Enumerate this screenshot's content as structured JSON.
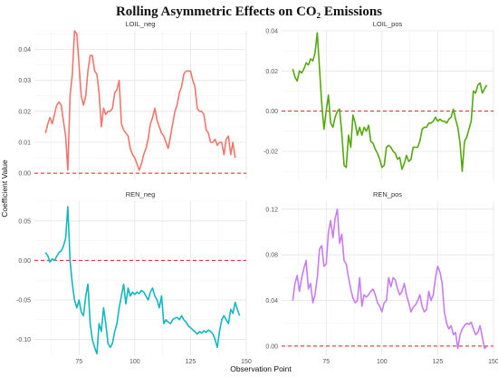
{
  "chart_data": {
    "type": "line",
    "title": "Rolling Asymmetric Effects on CO₂ Emissions",
    "xlabel": "Observation Point",
    "ylabel": "Coefficient Value",
    "grid": true,
    "reference_line": {
      "y": 0,
      "color": "#e0201b",
      "style": "dashed"
    },
    "x_range": [
      55,
      150
    ],
    "x_ticks": [
      75,
      100,
      125,
      150
    ],
    "panels": [
      {
        "name": "LOIL_neg",
        "color": "#f0766d",
        "ylim": [
          -0.002,
          0.046
        ],
        "y_ticks": [
          0.0,
          0.01,
          0.02,
          0.03,
          0.04
        ],
        "y_tick_labels": [
          "0.00",
          "0.01",
          "0.02",
          "0.03",
          "0.04"
        ],
        "x": [
          60,
          61,
          62,
          63,
          64,
          65,
          66,
          67,
          68,
          69,
          70,
          71,
          72,
          73,
          74,
          75,
          76,
          77,
          78,
          79,
          80,
          81,
          82,
          83,
          84,
          85,
          86,
          87,
          88,
          89,
          90,
          91,
          92,
          93,
          94,
          95,
          96,
          97,
          98,
          99,
          100,
          101,
          102,
          103,
          104,
          105,
          106,
          107,
          108,
          109,
          110,
          111,
          112,
          113,
          114,
          115,
          116,
          117,
          118,
          119,
          120,
          121,
          122,
          123,
          124,
          125,
          126,
          127,
          128,
          129,
          130,
          131,
          132,
          133,
          134,
          135,
          136,
          137,
          138,
          139,
          140,
          141,
          142,
          143,
          144,
          145
        ],
        "values": [
          0.013,
          0.016,
          0.018,
          0.016,
          0.019,
          0.022,
          0.023,
          0.022,
          0.017,
          0.012,
          0.001,
          0.025,
          0.032,
          0.046,
          0.045,
          0.035,
          0.025,
          0.022,
          0.025,
          0.033,
          0.038,
          0.038,
          0.033,
          0.032,
          0.026,
          0.015,
          0.021,
          0.019,
          0.02,
          0.02,
          0.021,
          0.026,
          0.027,
          0.03,
          0.016,
          0.014,
          0.013,
          0.012,
          0.008,
          0.006,
          0.005,
          0.003,
          0.001,
          0.003,
          0.006,
          0.008,
          0.011,
          0.016,
          0.018,
          0.021,
          0.017,
          0.015,
          0.013,
          0.012,
          0.01,
          0.008,
          0.012,
          0.016,
          0.02,
          0.022,
          0.026,
          0.028,
          0.032,
          0.033,
          0.033,
          0.033,
          0.03,
          0.028,
          0.021,
          0.02,
          0.02,
          0.019,
          0.014,
          0.013,
          0.01,
          0.01,
          0.011,
          0.009,
          0.01,
          0.01,
          0.006,
          0.011,
          0.012,
          0.006,
          0.01,
          0.005
        ]
      },
      {
        "name": "LOIL_pos",
        "color": "#54a80f",
        "ylim": [
          -0.034,
          0.04
        ],
        "y_ticks": [
          -0.02,
          0.0,
          0.02,
          0.04
        ],
        "y_tick_labels": [
          "-0.02",
          "0.00",
          "0.02",
          "0.04"
        ],
        "x": [
          60,
          61,
          62,
          63,
          64,
          65,
          66,
          67,
          68,
          69,
          70,
          71,
          72,
          73,
          74,
          75,
          76,
          77,
          78,
          79,
          80,
          81,
          82,
          83,
          84,
          85,
          86,
          87,
          88,
          89,
          90,
          91,
          92,
          93,
          94,
          95,
          96,
          97,
          98,
          99,
          100,
          101,
          102,
          103,
          104,
          105,
          106,
          107,
          108,
          109,
          110,
          111,
          112,
          113,
          114,
          115,
          116,
          117,
          118,
          119,
          120,
          121,
          122,
          123,
          124,
          125,
          126,
          127,
          128,
          129,
          130,
          131,
          132,
          133,
          134,
          135,
          136,
          137,
          138,
          139,
          140,
          141,
          142,
          143,
          144,
          145,
          146,
          147
        ],
        "values": [
          0.021,
          0.017,
          0.015,
          0.02,
          0.019,
          0.021,
          0.024,
          0.023,
          0.026,
          0.025,
          0.029,
          0.039,
          0.021,
          0.004,
          -0.009,
          0.0,
          0.008,
          -0.006,
          -0.008,
          -0.003,
          0.0,
          0.001,
          -0.011,
          -0.027,
          -0.028,
          -0.012,
          -0.018,
          -0.002,
          -0.006,
          -0.012,
          -0.008,
          -0.012,
          -0.008,
          -0.01,
          -0.007,
          -0.015,
          -0.016,
          -0.019,
          -0.021,
          -0.024,
          -0.028,
          -0.027,
          -0.018,
          -0.017,
          -0.018,
          -0.02,
          -0.021,
          -0.024,
          -0.023,
          -0.029,
          -0.026,
          -0.022,
          -0.025,
          -0.024,
          -0.018,
          -0.018,
          -0.018,
          -0.015,
          -0.009,
          -0.008,
          -0.008,
          -0.006,
          -0.006,
          -0.005,
          -0.003,
          -0.005,
          -0.004,
          -0.005,
          -0.005,
          -0.006,
          -0.004,
          -0.003,
          0.001,
          -0.004,
          -0.008,
          -0.016,
          -0.03,
          -0.015,
          -0.013,
          -0.009,
          -0.005,
          0.01,
          0.009,
          0.013,
          0.014,
          0.009,
          0.011,
          0.013
        ]
      },
      {
        "name": "REN_neg",
        "color": "#12b7c0",
        "ylim": [
          -0.12,
          0.075
        ],
        "y_ticks": [
          -0.1,
          -0.05,
          0.0,
          0.05
        ],
        "y_tick_labels": [
          "-0.10",
          "-0.05",
          "0.00",
          "0.05"
        ],
        "x": [
          60,
          61,
          62,
          63,
          64,
          65,
          66,
          67,
          68,
          69,
          70,
          71,
          72,
          73,
          74,
          75,
          76,
          77,
          78,
          79,
          80,
          81,
          82,
          83,
          84,
          85,
          86,
          87,
          88,
          89,
          90,
          91,
          92,
          93,
          94,
          95,
          96,
          97,
          98,
          99,
          100,
          101,
          102,
          103,
          104,
          105,
          106,
          107,
          108,
          109,
          110,
          111,
          112,
          113,
          114,
          115,
          116,
          117,
          118,
          119,
          120,
          121,
          122,
          123,
          124,
          125,
          126,
          127,
          128,
          129,
          130,
          131,
          132,
          133,
          134,
          135,
          136,
          137,
          138,
          139,
          140,
          141,
          142,
          143,
          144,
          145,
          146,
          147
        ],
        "values": [
          0.01,
          0.006,
          -0.002,
          0.002,
          0.0,
          0.005,
          0.01,
          0.012,
          0.018,
          0.028,
          0.068,
          0.0,
          -0.03,
          -0.05,
          -0.06,
          -0.05,
          -0.065,
          -0.07,
          -0.045,
          -0.03,
          -0.08,
          -0.1,
          -0.11,
          -0.118,
          -0.08,
          -0.09,
          -0.06,
          -0.08,
          -0.105,
          -0.11,
          -0.105,
          -0.09,
          -0.08,
          -0.06,
          -0.045,
          -0.03,
          -0.055,
          -0.035,
          -0.045,
          -0.04,
          -0.043,
          -0.04,
          -0.042,
          -0.038,
          -0.04,
          -0.045,
          -0.05,
          -0.04,
          -0.035,
          -0.045,
          -0.05,
          -0.06,
          -0.045,
          -0.08,
          -0.075,
          -0.078,
          -0.08,
          -0.075,
          -0.073,
          -0.072,
          -0.075,
          -0.07,
          -0.075,
          -0.078,
          -0.083,
          -0.085,
          -0.088,
          -0.09,
          -0.093,
          -0.09,
          -0.092,
          -0.089,
          -0.091,
          -0.088,
          -0.09,
          -0.093,
          -0.1,
          -0.11,
          -0.09,
          -0.075,
          -0.07,
          -0.075,
          -0.08,
          -0.062,
          -0.067,
          -0.053,
          -0.062,
          -0.07
        ]
      },
      {
        "name": "REN_pos",
        "color": "#c77cf2",
        "ylim": [
          -0.008,
          0.127
        ],
        "y_ticks": [
          0.0,
          0.04,
          0.08,
          0.12
        ],
        "y_tick_labels": [
          "0.00",
          "0.04",
          "0.08",
          "0.12"
        ],
        "x": [
          60,
          61,
          62,
          63,
          64,
          65,
          66,
          67,
          68,
          69,
          70,
          71,
          72,
          73,
          74,
          75,
          76,
          77,
          78,
          79,
          80,
          81,
          82,
          83,
          84,
          85,
          86,
          87,
          88,
          89,
          90,
          91,
          92,
          93,
          94,
          95,
          96,
          97,
          98,
          99,
          100,
          101,
          102,
          103,
          104,
          105,
          106,
          107,
          108,
          109,
          110,
          111,
          112,
          113,
          114,
          115,
          116,
          117,
          118,
          119,
          120,
          121,
          122,
          123,
          124,
          125,
          126,
          127,
          128,
          129,
          130,
          131,
          132,
          133,
          134,
          135,
          136,
          137,
          138,
          139,
          140,
          141,
          142,
          143,
          144,
          145,
          146,
          147
        ],
        "values": [
          0.04,
          0.055,
          0.062,
          0.048,
          0.06,
          0.068,
          0.075,
          0.05,
          0.055,
          0.038,
          0.045,
          0.06,
          0.085,
          0.088,
          0.07,
          0.072,
          0.1,
          0.11,
          0.095,
          0.112,
          0.12,
          0.09,
          0.098,
          0.075,
          0.072,
          0.06,
          0.05,
          0.042,
          0.038,
          0.04,
          0.06,
          0.035,
          0.045,
          0.043,
          0.045,
          0.048,
          0.05,
          0.045,
          0.038,
          0.035,
          0.03,
          0.038,
          0.04,
          0.06,
          0.052,
          0.06,
          0.058,
          0.05,
          0.045,
          0.048,
          0.055,
          0.045,
          0.038,
          0.03,
          0.034,
          0.036,
          0.04,
          0.045,
          0.035,
          0.03,
          0.032,
          0.048,
          0.04,
          0.045,
          0.06,
          0.07,
          0.065,
          0.055,
          0.03,
          0.02,
          0.015,
          0.018,
          0.01,
          0.012,
          -0.002,
          0.01,
          0.015,
          0.018,
          0.02,
          0.019,
          0.021,
          0.015,
          0.01,
          0.012,
          0.018,
          0.008,
          -0.002,
          0.0
        ]
      }
    ]
  }
}
